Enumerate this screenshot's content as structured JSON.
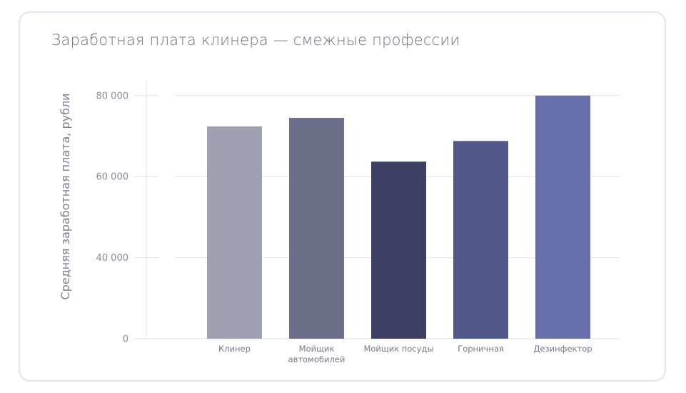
{
  "chart_data": {
    "type": "bar",
    "title": "Заработная плата клинера — смежные профессии",
    "xlabel": "",
    "ylabel": "Средняя заработная плата, рубли",
    "categories": [
      [
        "Клинер"
      ],
      [
        "Мойщик",
        "автомобилей"
      ],
      [
        "Мойщик посуды"
      ],
      [
        "Горничная"
      ],
      [
        "Дезинфектор"
      ]
    ],
    "values": [
      72400,
      74500,
      63700,
      68800,
      80000
    ],
    "colors": [
      "#a0a0b3",
      "#6d6e89",
      "#3d3f63",
      "#525789",
      "#6870ac"
    ],
    "yticks": [
      0,
      40000,
      60000,
      80000
    ],
    "ytick_labels": [
      "0",
      "40 000",
      "60 000",
      "80 000"
    ],
    "ylim": [
      0,
      80000
    ],
    "grid": true,
    "axis_note": "y axis is broken: ticks equally spaced"
  }
}
